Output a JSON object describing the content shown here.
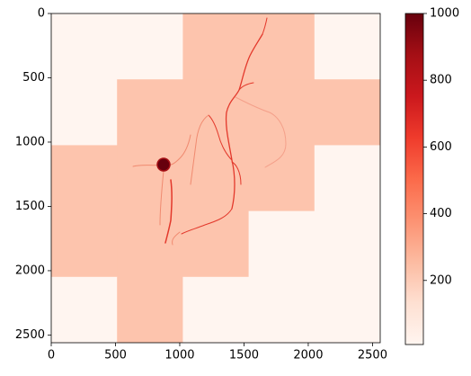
{
  "chart_data": {
    "type": "heatmap",
    "xlim": [
      0,
      2560
    ],
    "ylim": [
      2560,
      0
    ],
    "xticks": [
      0,
      500,
      1000,
      1500,
      2000,
      2500
    ],
    "yticks": [
      0,
      500,
      1000,
      1500,
      2000,
      2500
    ],
    "cell_size": 512,
    "values": [
      [
        8,
        8,
        225,
        225,
        8
      ],
      [
        8,
        225,
        225,
        225,
        225
      ],
      [
        225,
        225,
        225,
        225,
        8
      ],
      [
        225,
        225,
        225,
        8,
        8
      ],
      [
        8,
        225,
        8,
        8,
        8
      ]
    ],
    "colormap": [
      "#fff5f0",
      "#fee0d2",
      "#fcbba1",
      "#fc9272",
      "#fb6a4a",
      "#ef3b2c",
      "#cb181d",
      "#a50f15",
      "#67000d"
    ],
    "clim": [
      8,
      1000
    ],
    "cticks": [
      200,
      400,
      600,
      800,
      1000
    ]
  }
}
